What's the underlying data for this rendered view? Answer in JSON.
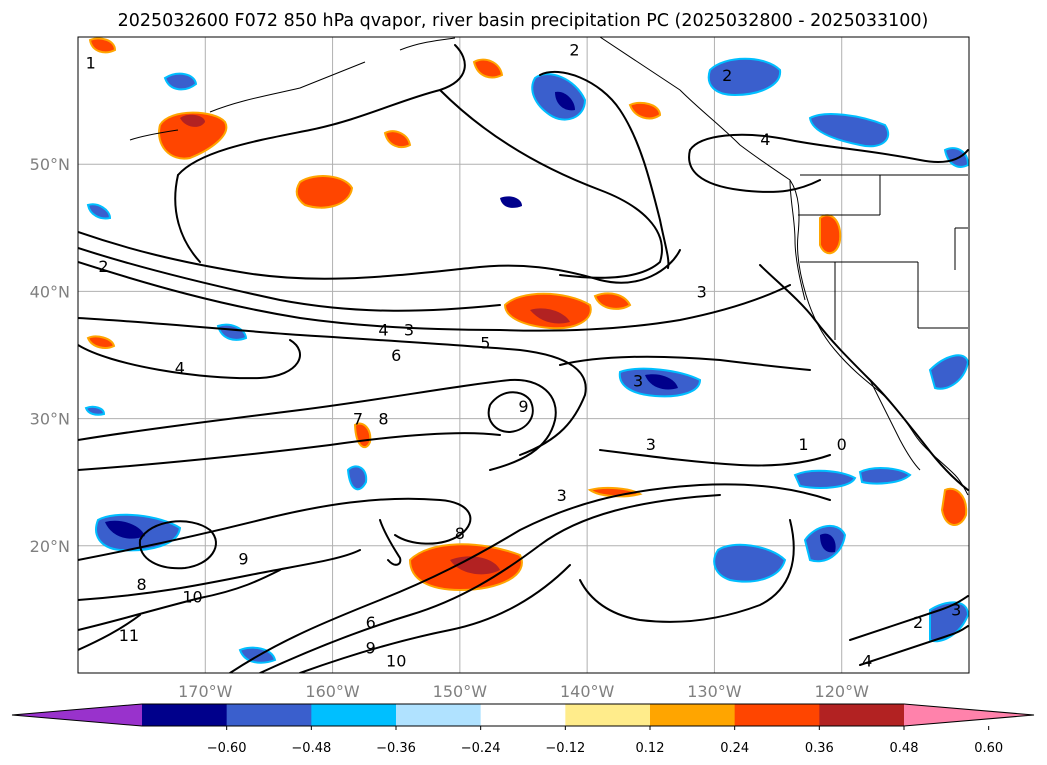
{
  "title": "2025032600 F072 850 hPa qvapor, river basin precipitation PC (2025032800 - 2025033100)",
  "map": {
    "lon_range": [
      -180,
      -110
    ],
    "lat_range": [
      10,
      60
    ],
    "lon_ticks": [
      {
        "lon": -170,
        "label": "170°W"
      },
      {
        "lon": -160,
        "label": "160°W"
      },
      {
        "lon": -150,
        "label": "150°W"
      },
      {
        "lon": -140,
        "label": "140°W"
      },
      {
        "lon": -130,
        "label": "130°W"
      },
      {
        "lon": -120,
        "label": "120°W"
      }
    ],
    "lat_ticks": [
      {
        "lat": 20,
        "label": "20°N"
      },
      {
        "lat": 30,
        "label": "30°N"
      },
      {
        "lat": 40,
        "label": "40°N"
      },
      {
        "lat": 50,
        "label": "50°N"
      }
    ],
    "grid": true
  },
  "colorbar": {
    "extend": "both",
    "colors": [
      "#9932cc",
      "#00008b",
      "#3a5fcd",
      "#00bfff",
      "#b0e2ff",
      "#ffffff",
      "#ffec8b",
      "#ffa500",
      "#ff4500",
      "#b22222",
      "#ff82ab"
    ],
    "tick_labels": [
      "−0.60",
      "−0.48",
      "−0.36",
      "−0.24",
      "−0.12",
      "0.12",
      "0.24",
      "0.36",
      "0.48",
      "0.60"
    ]
  },
  "contour_labels": [
    {
      "text": "1",
      "lon": -179,
      "lat": 58
    },
    {
      "text": "2",
      "lon": -178,
      "lat": 42
    },
    {
      "text": "4",
      "lon": -172,
      "lat": 34
    },
    {
      "text": "4",
      "lon": -156,
      "lat": 37
    },
    {
      "text": "3",
      "lon": -154,
      "lat": 37
    },
    {
      "text": "6",
      "lon": -155,
      "lat": 35
    },
    {
      "text": "5",
      "lon": -148,
      "lat": 36
    },
    {
      "text": "7",
      "lon": -158,
      "lat": 30
    },
    {
      "text": "8",
      "lon": -156,
      "lat": 30
    },
    {
      "text": "9",
      "lon": -145,
      "lat": 31
    },
    {
      "text": "3",
      "lon": -131,
      "lat": 40
    },
    {
      "text": "3",
      "lon": -136,
      "lat": 33
    },
    {
      "text": "3",
      "lon": -135,
      "lat": 28
    },
    {
      "text": "1",
      "lon": -123,
      "lat": 28
    },
    {
      "text": "0",
      "lon": -120,
      "lat": 28
    },
    {
      "text": "4",
      "lon": -126,
      "lat": 52
    },
    {
      "text": "2",
      "lon": -129,
      "lat": 57
    },
    {
      "text": "2",
      "lon": -141,
      "lat": 59
    },
    {
      "text": "3",
      "lon": -142,
      "lat": 24
    },
    {
      "text": "8",
      "lon": -150,
      "lat": 21
    },
    {
      "text": "9",
      "lon": -167,
      "lat": 19
    },
    {
      "text": "8",
      "lon": -175,
      "lat": 17
    },
    {
      "text": "10",
      "lon": -171,
      "lat": 16
    },
    {
      "text": "11",
      "lon": -176,
      "lat": 13
    },
    {
      "text": "6",
      "lon": -157,
      "lat": 14
    },
    {
      "text": "9",
      "lon": -157,
      "lat": 12
    },
    {
      "text": "10",
      "lon": -155,
      "lat": 11
    },
    {
      "text": "2",
      "lon": -114,
      "lat": 14
    },
    {
      "text": "3",
      "lon": -111,
      "lat": 15
    },
    {
      "text": "4",
      "lon": -118,
      "lat": 11
    }
  ]
}
